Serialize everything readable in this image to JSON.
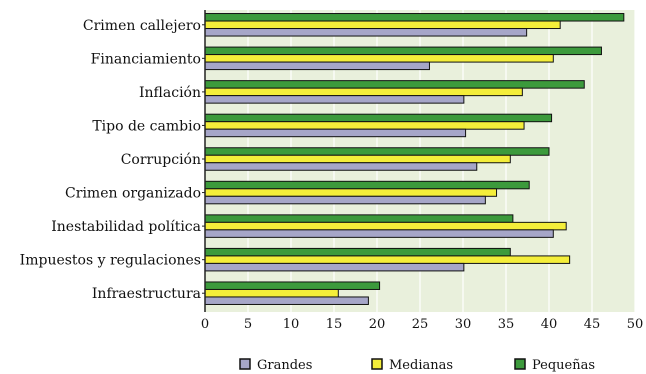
{
  "chart_data": {
    "type": "bar",
    "orientation": "horizontal",
    "categories": [
      "Crimen callejero",
      "Financiamiento",
      "Inflación",
      "Tipo de cambio",
      "Corrupción",
      "Crimen organizado",
      "Inestabilidad política",
      "Impuestos y regulaciones",
      "Infraestructura"
    ],
    "series": [
      {
        "name": "Pequeñas",
        "color": "#3c9a3c",
        "values": [
          48.7,
          46.1,
          44.1,
          40.3,
          40.0,
          37.7,
          35.8,
          35.5,
          20.3
        ]
      },
      {
        "name": "Medianas",
        "color": "#f4ee3a",
        "values": [
          41.3,
          40.5,
          36.9,
          37.1,
          35.5,
          33.9,
          42.0,
          42.4,
          15.5
        ]
      },
      {
        "name": "Grandes",
        "color": "#a6a6c8",
        "values": [
          37.4,
          26.1,
          30.1,
          30.3,
          31.6,
          32.6,
          40.5,
          30.1,
          19.0
        ]
      }
    ],
    "xlim": [
      0,
      50
    ],
    "xticks": [
      0,
      5,
      10,
      15,
      20,
      25,
      30,
      35,
      40,
      45,
      50
    ],
    "legend": {
      "position": "bottom",
      "order": [
        "Grandes",
        "Medianas",
        "Pequeñas"
      ]
    },
    "plot_background": "#e9f0dc",
    "grid": "vertical-white"
  }
}
